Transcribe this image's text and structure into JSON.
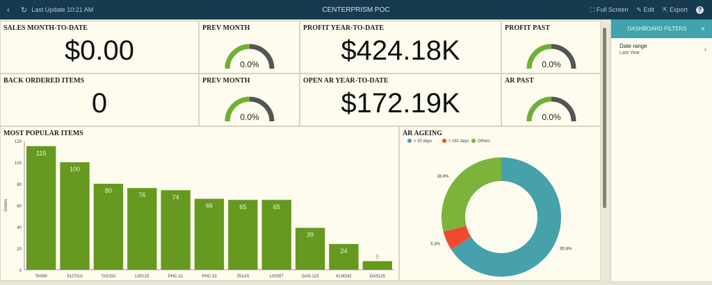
{
  "header": {
    "title": "CENTERPRISM POC",
    "last_update": "Last Update 10:21 AM",
    "full_screen": "Full Screen",
    "edit": "Edit",
    "export": "Export",
    "help": "?"
  },
  "kpis": [
    {
      "title": "SALES MONTH-TO-DATE",
      "value": "$0.00"
    },
    {
      "title": "PREV MONTH",
      "value": "0.0%",
      "gauge": 0
    },
    {
      "title": "PROFIT YEAR-TO-DATE",
      "value": "$424.18K"
    },
    {
      "title": "PROFIT PAST",
      "value": "0.0%",
      "gauge": 0
    },
    {
      "title": "BACK ORDERED ITEMS",
      "value": "0"
    },
    {
      "title": "PREV MONTH",
      "value": "0.0%",
      "gauge": 0
    },
    {
      "title": "OPEN AR YEAR-TO-DATE",
      "value": "$172.19K"
    },
    {
      "title": "AR PAST",
      "value": "0.0%",
      "gauge": 0
    }
  ],
  "filters": {
    "title": "DASHBOARD FILTERS",
    "close": "×",
    "date_label": "Date range",
    "date_value": "Last Year"
  },
  "colors": {
    "bar": "#66991f",
    "teal": "#47a1ab",
    "red": "#f04a2e",
    "green": "#7cb33a",
    "header": "#163a4e"
  },
  "chart_data": [
    {
      "type": "bar",
      "title": "MOST POPULAR ITEMS",
      "ylabel": "Orders",
      "xlabel": "",
      "ylim": [
        0,
        120
      ],
      "yticks": [
        0,
        20,
        40,
        60,
        80,
        100,
        120
      ],
      "categories": [
        "TK890",
        "512TGA",
        "TAS152",
        "L00123",
        "PHC-21",
        "PHC-33",
        "251AS",
        "L00287",
        "GAS-123",
        "KLM242",
        "DAS125"
      ],
      "values": [
        115,
        100,
        80,
        76,
        74,
        66,
        65,
        65,
        39,
        24,
        8
      ]
    },
    {
      "type": "pie",
      "title": "AR AGEING",
      "donut": true,
      "labels": [
        "< 30 days",
        "> 181 days",
        "Others"
      ],
      "values": [
        65.8,
        5.3,
        28.9
      ],
      "data_labels": [
        "65.8%",
        "5.3%",
        "28.9%"
      ],
      "legend": "top-left"
    }
  ]
}
